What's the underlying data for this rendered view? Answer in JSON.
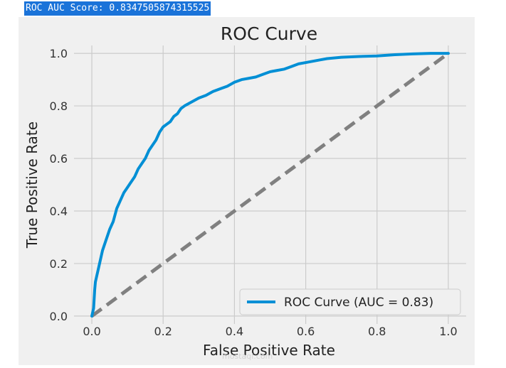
{
  "output": {
    "score_text": "ROC AUC Score: 0.8347505874315525"
  },
  "watermark": "mostaql.com",
  "chart_data": {
    "type": "line",
    "title": "ROC Curve",
    "xlabel": "False Positive Rate",
    "ylabel": "True Positive Rate",
    "xlim": [
      -0.05,
      1.05
    ],
    "ylim": [
      -0.03,
      1.03
    ],
    "xticks": [
      "0.0",
      "0.2",
      "0.4",
      "0.6",
      "0.8",
      "1.0"
    ],
    "yticks": [
      "0.0",
      "0.2",
      "0.4",
      "0.6",
      "0.8",
      "1.0"
    ],
    "grid": true,
    "legend": "lower-right",
    "colors": {
      "roc": "#008fd5",
      "diagonal": "#808080",
      "plot_bg": "#f0f0f0",
      "grid": "#cbcbcb"
    },
    "series": [
      {
        "name": "ROC Curve (AUC = 0.83)",
        "x": [
          0.0,
          0.005,
          0.008,
          0.01,
          0.015,
          0.02,
          0.025,
          0.03,
          0.04,
          0.05,
          0.06,
          0.07,
          0.08,
          0.09,
          0.1,
          0.11,
          0.12,
          0.13,
          0.14,
          0.15,
          0.16,
          0.17,
          0.18,
          0.19,
          0.2,
          0.21,
          0.22,
          0.23,
          0.24,
          0.25,
          0.26,
          0.28,
          0.3,
          0.32,
          0.34,
          0.36,
          0.38,
          0.4,
          0.42,
          0.44,
          0.46,
          0.48,
          0.5,
          0.52,
          0.54,
          0.56,
          0.58,
          0.6,
          0.62,
          0.64,
          0.66,
          0.7,
          0.75,
          0.8,
          0.85,
          0.9,
          0.95,
          1.0
        ],
        "y": [
          0.0,
          0.03,
          0.1,
          0.13,
          0.16,
          0.19,
          0.22,
          0.25,
          0.29,
          0.33,
          0.36,
          0.41,
          0.44,
          0.47,
          0.49,
          0.51,
          0.53,
          0.56,
          0.58,
          0.6,
          0.63,
          0.65,
          0.67,
          0.7,
          0.72,
          0.73,
          0.74,
          0.76,
          0.77,
          0.79,
          0.8,
          0.815,
          0.83,
          0.84,
          0.855,
          0.865,
          0.875,
          0.89,
          0.9,
          0.905,
          0.91,
          0.92,
          0.93,
          0.935,
          0.94,
          0.95,
          0.96,
          0.965,
          0.97,
          0.975,
          0.98,
          0.985,
          0.988,
          0.99,
          0.995,
          0.998,
          1.0,
          1.0
        ]
      },
      {
        "name": "",
        "x": [
          0,
          1
        ],
        "y": [
          0,
          1
        ]
      }
    ]
  }
}
